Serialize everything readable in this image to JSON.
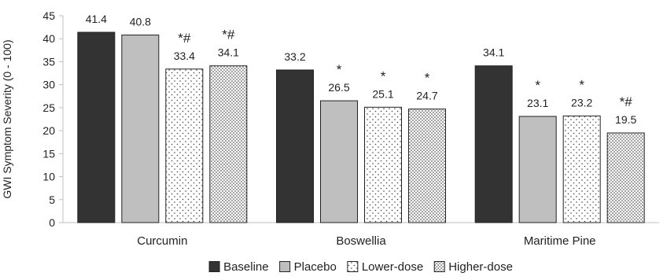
{
  "chart_data": {
    "type": "bar",
    "title": "",
    "xlabel": "",
    "ylabel": "GWI Symptom Severity (0 - 100)",
    "ylim": [
      0,
      45
    ],
    "yticks": [
      0,
      5,
      10,
      15,
      20,
      25,
      30,
      35,
      40,
      45
    ],
    "grid": false,
    "legend_position": "bottom",
    "categories": [
      "Curcumin",
      "Boswellia",
      "Maritime Pine"
    ],
    "series": [
      {
        "name": "Baseline",
        "values": [
          41.4,
          33.2,
          34.1
        ],
        "labels": [
          "41.4",
          "33.2",
          "34.1"
        ],
        "annotations": [
          "",
          "",
          ""
        ],
        "fill": "solid",
        "color": "#333333"
      },
      {
        "name": "Placebo",
        "values": [
          40.8,
          26.5,
          23.1
        ],
        "labels": [
          "40.8",
          "26.5",
          "23.1"
        ],
        "annotations": [
          "",
          "*",
          "*"
        ],
        "fill": "solid",
        "color": "#bfbfbf"
      },
      {
        "name": "Lower-dose",
        "values": [
          33.4,
          25.1,
          23.2
        ],
        "labels": [
          "33.4",
          "25.1",
          "23.2"
        ],
        "annotations": [
          "*#",
          "*",
          "*"
        ],
        "fill": "sparse-dots",
        "color": "#ffffff"
      },
      {
        "name": "Higher-dose",
        "values": [
          34.1,
          24.7,
          19.5
        ],
        "labels": [
          "34.1",
          "24.7",
          "19.5"
        ],
        "annotations": [
          "*#",
          "*",
          "*#"
        ],
        "fill": "dense-dots",
        "color": "#ffffff"
      }
    ]
  }
}
